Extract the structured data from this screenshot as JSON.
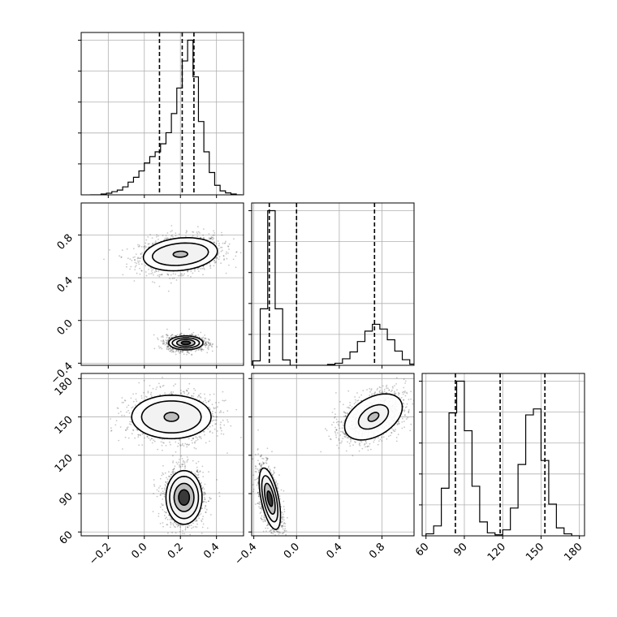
{
  "chart_data": [
    {
      "type": "histogram",
      "panel": "param1-marginal",
      "x": [
        -0.3,
        -0.27,
        -0.24,
        -0.21,
        -0.18,
        -0.15,
        -0.12,
        -0.09,
        -0.06,
        -0.03,
        0.0,
        0.03,
        0.06,
        0.09,
        0.12,
        0.15,
        0.18,
        0.21,
        0.24,
        0.27,
        0.3,
        0.33,
        0.36,
        0.39,
        0.42,
        0.45,
        0.48,
        0.51
      ],
      "values": [
        0.0,
        0.0,
        0.05,
        0.1,
        0.2,
        0.3,
        0.5,
        0.8,
        1.1,
        1.5,
        2.0,
        2.4,
        2.7,
        3.2,
        3.9,
        5.1,
        6.7,
        8.4,
        9.7,
        7.4,
        4.6,
        2.7,
        1.4,
        0.6,
        0.25,
        0.12,
        0.05,
        0.0
      ],
      "quantiles": [
        0.084,
        0.21,
        0.275
      ],
      "xlim": [
        -0.35,
        0.55
      ]
    },
    {
      "type": "histogram",
      "panel": "param2-marginal",
      "x": [
        -0.41,
        -0.34,
        -0.27,
        -0.2,
        -0.13,
        -0.06,
        0.01,
        0.08,
        0.15,
        0.22,
        0.29,
        0.36,
        0.43,
        0.5,
        0.57,
        0.64,
        0.71,
        0.78,
        0.85,
        0.92,
        0.99,
        1.06
      ],
      "values": [
        0.15,
        1.9,
        5.2,
        1.9,
        0.18,
        0.0,
        0.0,
        0.0,
        0.0,
        0.0,
        0.03,
        0.07,
        0.22,
        0.45,
        0.8,
        1.15,
        1.38,
        1.22,
        0.86,
        0.48,
        0.19,
        0.04
      ],
      "quantiles": [
        -0.255,
        0.0,
        0.73
      ],
      "xlim": [
        -0.42,
        1.1
      ]
    },
    {
      "type": "histogram",
      "panel": "param3-marginal",
      "x": [
        60,
        66,
        72,
        78,
        84,
        90,
        96,
        102,
        108,
        114,
        120,
        126,
        132,
        138,
        144,
        150,
        156,
        162,
        168,
        174,
        180
      ],
      "values": [
        0.1,
        0.5,
        2.4,
        6.2,
        7.8,
        5.3,
        2.5,
        0.7,
        0.15,
        0.05,
        0.3,
        1.4,
        3.6,
        6.1,
        6.4,
        3.8,
        1.6,
        0.4,
        0.1,
        0.0
      ],
      "quantiles": [
        83,
        118,
        153
      ],
      "xlim": [
        57,
        184
      ]
    },
    {
      "type": "scatter-density",
      "panel": "param1-vs-param2",
      "modes": [
        {
          "center": [
            0.2,
            0.62
          ],
          "levels": [
            [
              0.205,
              0.155,
              0.19
            ],
            [
              0.155,
              0.105,
              0.2
            ],
            [
              0.04,
              0.028,
              0.06
            ]
          ]
        },
        {
          "center": [
            0.23,
            -0.21
          ],
          "levels": [
            [
              0.095,
              0.065,
              0.0
            ],
            [
              0.075,
              0.048,
              0.0
            ],
            [
              0.05,
              0.032,
              0.0
            ],
            [
              0.025,
              0.016,
              0.0
            ]
          ]
        }
      ],
      "xlim": [
        -0.35,
        0.55
      ],
      "ylim": [
        -0.42,
        1.1
      ]
    },
    {
      "type": "scatter-density",
      "panel": "param1-vs-param3",
      "modes": [
        {
          "center": [
            0.15,
            150
          ],
          "levels": [
            [
              0.22,
              17,
              0.0
            ],
            [
              0.165,
              12.5,
              0.0
            ],
            [
              0.04,
              3.5,
              0.0
            ]
          ]
        },
        {
          "center": [
            0.22,
            87
          ],
          "levels": [
            [
              0.1,
              21,
              0.0
            ],
            [
              0.08,
              16.5,
              0.0
            ],
            [
              0.055,
              11,
              0.0
            ],
            [
              0.03,
              6,
              0.0
            ]
          ]
        }
      ],
      "xlim": [
        -0.35,
        0.55
      ],
      "ylim": [
        57,
        184
      ]
    },
    {
      "type": "scatter-density",
      "panel": "param2-vs-param3",
      "modes": [
        {
          "center": [
            0.72,
            150
          ],
          "levels": [
            [
              0.27,
              18,
              0.42
            ],
            [
              0.14,
              9.5,
              0.42
            ],
            [
              0.05,
              3.5,
              0.42
            ]
          ]
        },
        {
          "center": [
            -0.25,
            86
          ],
          "levels": [
            [
              0.1,
              24,
              -0.55
            ],
            [
              0.075,
              18,
              -0.55
            ],
            [
              0.05,
              12,
              -0.55
            ],
            [
              0.025,
              6,
              -0.55
            ]
          ]
        }
      ],
      "xlim": [
        -0.42,
        1.1
      ],
      "ylim": [
        57,
        184
      ]
    }
  ],
  "axes": {
    "p1": {
      "ticks": [
        -0.2,
        0.0,
        0.2,
        0.4
      ],
      "labels": [
        "−0.2",
        "0.0",
        "0.2",
        "0.4"
      ]
    },
    "p2": {
      "ticks": [
        -0.4,
        0.0,
        0.4,
        0.8
      ],
      "labels": [
        "−0.4",
        "0.0",
        "0.4",
        "0.8"
      ]
    },
    "p3": {
      "ticks": [
        60,
        90,
        120,
        150,
        180
      ],
      "labels": [
        "60",
        "90",
        "120",
        "150",
        "180"
      ]
    }
  },
  "hist_gridlines": 5,
  "colors": {
    "line": "#000000",
    "grid": "#b0b0b0",
    "points": "#000000"
  }
}
